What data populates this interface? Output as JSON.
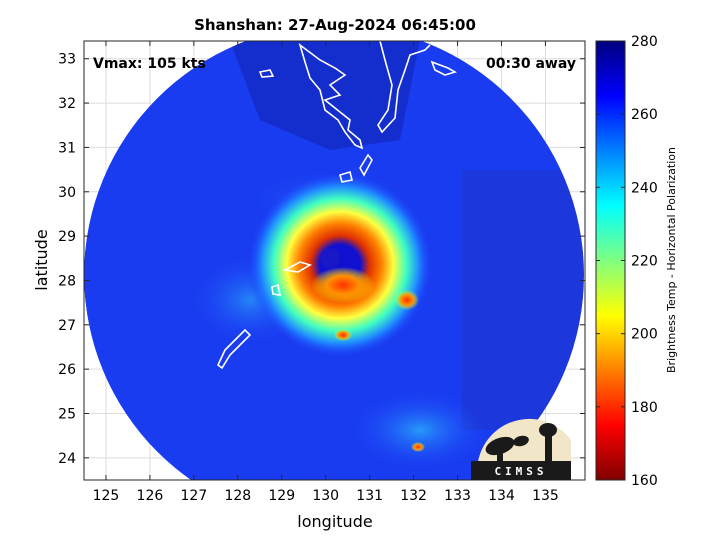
{
  "chart_data": {
    "type": "heatmap",
    "title": "Shanshan: 27-Aug-2024 06:45:00",
    "xlabel": "longitude",
    "ylabel": "latitude",
    "xlim": [
      124.5,
      135.9
    ],
    "ylim": [
      23.5,
      33.4
    ],
    "x_ticks": [
      125,
      126,
      127,
      128,
      129,
      130,
      131,
      132,
      133,
      134,
      135
    ],
    "y_ticks": [
      24,
      25,
      26,
      27,
      28,
      29,
      30,
      31,
      32,
      33
    ],
    "grid": true,
    "annotation_left": "Vmax: 105 kts",
    "annotation_right": "00:30 away",
    "colorbar": {
      "label": "Brightness Temp - Horizontal Polarization",
      "range": [
        160,
        280
      ],
      "ticks": [
        160,
        180,
        200,
        220,
        240,
        260,
        280
      ],
      "colors": [
        "#7f0000",
        "#ff0000",
        "#ff8000",
        "#ffff00",
        "#80ff80",
        "#00ffff",
        "#0080ff",
        "#0000ff",
        "#00007f"
      ]
    },
    "storm_center": {
      "lon": 130.4,
      "lat": 28.4
    },
    "logo_text": "CIMSS"
  }
}
